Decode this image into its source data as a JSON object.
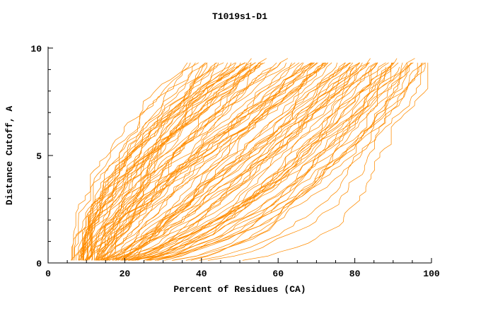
{
  "title": "T1019s1-D1",
  "chart_data": {
    "type": "line",
    "title": "T1019s1-D1",
    "xlabel": "Percent of Residues (CA)",
    "ylabel": "Distance Cutoff, A",
    "xlim": [
      0,
      100
    ],
    "ylim": [
      0,
      10
    ],
    "x_ticks": [
      0,
      20,
      40,
      60,
      80,
      100
    ],
    "y_ticks": [
      0,
      5,
      10
    ],
    "x_minor_step": 5,
    "y_minor_step": 1,
    "grid": false,
    "legend": "none",
    "series_color": "#ff8c00",
    "axis_color": "#000000",
    "num_series": 110,
    "seed": 7,
    "stroke_width": 0.75,
    "series_description": "Bundle of monotonically increasing model-accuracy curves: percent of CA residues (x) under each distance cutoff (y). Curves start near x=6-30 at cutoff 0 and rise to cutoff ~9.5 ending between x=35 and x=100, densest along the bottom and right edge."
  }
}
